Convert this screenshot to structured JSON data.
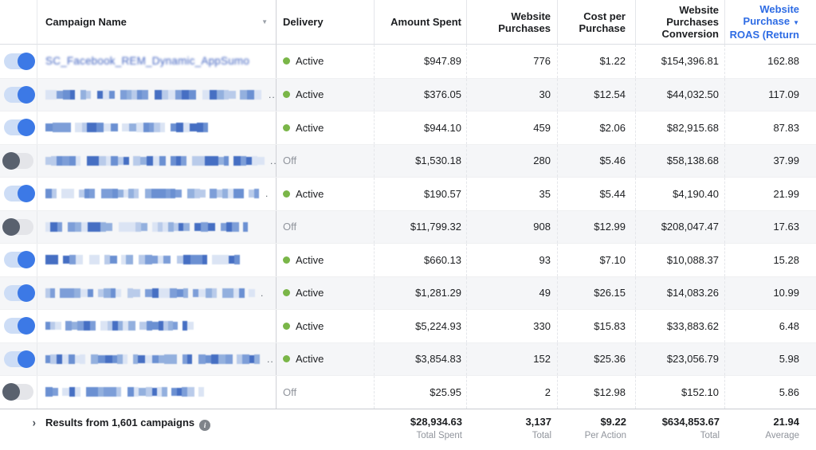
{
  "colors": {
    "accent": "#2d6be4",
    "active_dot": "#7ab648",
    "toggle_on": "#3c79e6",
    "toggle_off": "#59616e",
    "row_stripe": "#f5f6f8"
  },
  "header": {
    "campaign": "Campaign Name",
    "sort_caret": "▼",
    "delivery": "Delivery",
    "amount": "Amount Spent",
    "purchases": [
      "Website",
      "Purchases"
    ],
    "cost": [
      "Cost per",
      "Purchase"
    ],
    "conversion": [
      "Website",
      "Purchases",
      "Conversion"
    ],
    "roas_line1": "Website",
    "roas_line2": "Purchase",
    "roas_caret": "▼",
    "roas_line3": "ROAS (Return"
  },
  "rows": [
    {
      "toggle": "on",
      "name": "SC_Facebook_REM_Dynamic_AppSumo",
      "redacted": false,
      "mosaic_width": 0,
      "trail": "",
      "delivery": "Active",
      "amount": "$947.89",
      "purchases": "776",
      "cost": "$1.22",
      "conversion": "$154,396.81",
      "roas": "162.88"
    },
    {
      "toggle": "on",
      "name": "",
      "redacted": true,
      "mosaic_width": 270,
      "trail": "..",
      "delivery": "Active",
      "amount": "$376.05",
      "purchases": "30",
      "cost": "$12.54",
      "conversion": "$44,032.50",
      "roas": "117.09"
    },
    {
      "toggle": "on",
      "name": "",
      "redacted": true,
      "mosaic_width": 205,
      "trail": "",
      "delivery": "Active",
      "amount": "$944.10",
      "purchases": "459",
      "cost": "$2.06",
      "conversion": "$82,915.68",
      "roas": "87.83"
    },
    {
      "toggle": "off",
      "name": "",
      "redacted": true,
      "mosaic_width": 270,
      "trail": "..",
      "delivery": "Off",
      "amount": "$1,530.18",
      "purchases": "280",
      "cost": "$5.46",
      "conversion": "$58,138.68",
      "roas": "37.99"
    },
    {
      "toggle": "on",
      "name": "",
      "redacted": true,
      "mosaic_width": 263,
      "trail": ".",
      "delivery": "Active",
      "amount": "$190.57",
      "purchases": "35",
      "cost": "$5.44",
      "conversion": "$4,190.40",
      "roas": "21.99"
    },
    {
      "toggle": "off",
      "name": "",
      "redacted": true,
      "mosaic_width": 250,
      "trail": "",
      "delivery": "Off",
      "amount": "$11,799.32",
      "purchases": "908",
      "cost": "$12.99",
      "conversion": "$208,047.47",
      "roas": "17.63"
    },
    {
      "toggle": "on",
      "name": "",
      "redacted": true,
      "mosaic_width": 240,
      "trail": "",
      "delivery": "Active",
      "amount": "$660.13",
      "purchases": "93",
      "cost": "$7.10",
      "conversion": "$10,088.37",
      "roas": "15.28"
    },
    {
      "toggle": "on",
      "name": "",
      "redacted": true,
      "mosaic_width": 263,
      "trail": ".",
      "delivery": "Active",
      "amount": "$1,281.29",
      "purchases": "49",
      "cost": "$26.15",
      "conversion": "$14,083.26",
      "roas": "10.99"
    },
    {
      "toggle": "on",
      "name": "",
      "redacted": true,
      "mosaic_width": 185,
      "trail": "",
      "delivery": "Active",
      "amount": "$5,224.93",
      "purchases": "330",
      "cost": "$15.83",
      "conversion": "$33,883.62",
      "roas": "6.48"
    },
    {
      "toggle": "on",
      "name": "",
      "redacted": true,
      "mosaic_width": 263,
      "trail": "..",
      "delivery": "Active",
      "amount": "$3,854.83",
      "purchases": "152",
      "cost": "$25.36",
      "conversion": "$23,056.79",
      "roas": "5.98"
    },
    {
      "toggle": "off",
      "name": "",
      "redacted": true,
      "mosaic_width": 195,
      "trail": "",
      "delivery": "Off",
      "amount": "$25.95",
      "purchases": "2",
      "cost": "$12.98",
      "conversion": "$152.10",
      "roas": "5.86"
    }
  ],
  "footer": {
    "expand_chevron": "›",
    "results_label": "Results from 1,601 campaigns",
    "info_icon": "i",
    "totals": {
      "amount": "$28,934.63",
      "amount_label": "Total Spent",
      "purchases": "3,137",
      "purchases_label": "Total",
      "cost": "$9.22",
      "cost_label": "Per Action",
      "conversion": "$634,853.67",
      "conversion_label": "Total",
      "roas": "21.94",
      "roas_label": "Average"
    }
  }
}
